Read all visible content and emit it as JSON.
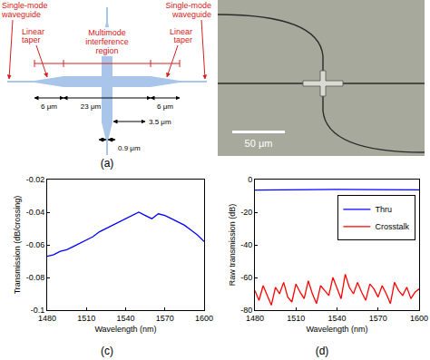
{
  "diagram": {
    "label": "(a)",
    "texts": {
      "left_waveguide": "Single-mode waveguide",
      "left_taper": "Linear taper",
      "mmi": "Multimode interference region",
      "right_waveguide": "Single-mode waveguide",
      "right_taper": "Linear taper",
      "left_taper_length": "6 μm",
      "mmi_length": "23 μm",
      "right_taper_length": "6 μm",
      "mmi_width": "3.5 μm",
      "waveguide_width": "0.9 μm"
    }
  },
  "micrograph": {
    "scale_bar": "50 μm"
  },
  "chart_data": [
    {
      "label": "(c)",
      "type": "line",
      "x_label": "Wavelength (nm)",
      "y_label": "Transmission (dB/crossing)",
      "x": [
        1480,
        1485,
        1490,
        1495,
        1500,
        1505,
        1510,
        1515,
        1520,
        1525,
        1530,
        1535,
        1540,
        1545,
        1550,
        1555,
        1560,
        1565,
        1570,
        1575,
        1580,
        1585,
        1590,
        1595,
        1600
      ],
      "values": [
        -0.067,
        -0.066,
        -0.064,
        -0.063,
        -0.061,
        -0.059,
        -0.057,
        -0.055,
        -0.052,
        -0.05,
        -0.048,
        -0.046,
        -0.044,
        -0.042,
        -0.04,
        -0.042,
        -0.044,
        -0.041,
        -0.042,
        -0.044,
        -0.046,
        -0.048,
        -0.051,
        -0.054,
        -0.058
      ],
      "color": "#0000ff",
      "xlim": [
        1480,
        1600
      ],
      "xticks": [
        1480,
        1510,
        1540,
        1570,
        1600
      ],
      "ylim": [
        -0.1,
        -0.02
      ],
      "yticks": [
        -0.1,
        -0.08,
        -0.06,
        -0.04,
        -0.02
      ],
      "grid": false
    },
    {
      "label": "(d)",
      "type": "line",
      "x_label": "Wavelength (nm)",
      "y_label": "Raw transmission (dB)",
      "series": [
        {
          "name": "Thru",
          "color": "#0000ff",
          "x": [
            1480,
            1540,
            1600
          ],
          "values": [
            -6.5,
            -6,
            -6.3
          ]
        },
        {
          "name": "Crosstalk",
          "color": "#ff0000",
          "x": [
            1480,
            1483,
            1486,
            1489,
            1492,
            1495,
            1498,
            1501,
            1504,
            1507,
            1510,
            1513,
            1516,
            1519,
            1522,
            1525,
            1528,
            1531,
            1534,
            1537,
            1540,
            1543,
            1546,
            1549,
            1552,
            1555,
            1558,
            1561,
            1564,
            1567,
            1570,
            1573,
            1576,
            1579,
            1582,
            1585,
            1588,
            1591,
            1594,
            1597,
            1600
          ],
          "values": [
            -68,
            -74,
            -65,
            -71,
            -77,
            -66,
            -70,
            -63,
            -72,
            -75,
            -64,
            -69,
            -73,
            -62,
            -70,
            -76,
            -65,
            -68,
            -71,
            -60,
            -67,
            -73,
            -58,
            -66,
            -70,
            -63,
            -69,
            -74,
            -64,
            -67,
            -72,
            -65,
            -70,
            -76,
            -63,
            -68,
            -71,
            -66,
            -73,
            -69,
            -67
          ]
        }
      ],
      "xlim": [
        1480,
        1600
      ],
      "xticks": [
        1480,
        1510,
        1540,
        1570,
        1600
      ],
      "ylim": [
        -80,
        0
      ],
      "yticks": [
        -80,
        -60,
        -40,
        -20,
        0
      ],
      "legend": "upper right",
      "grid": false
    }
  ]
}
